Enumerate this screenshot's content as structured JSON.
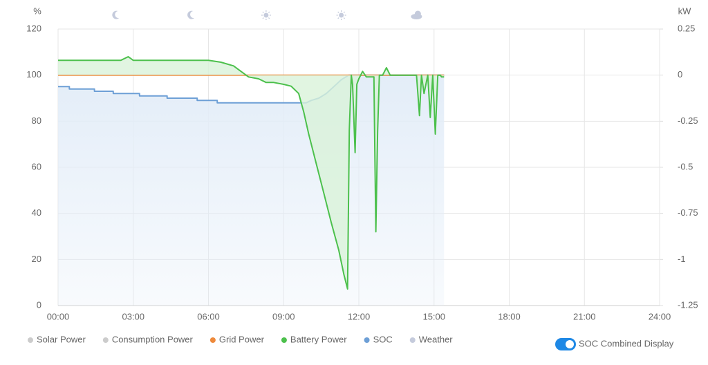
{
  "chart_data": {
    "type": "line",
    "ylabel": "%",
    "y2label": "kW",
    "xlim": [
      0,
      24
    ],
    "xticks": [
      {
        "value": 0,
        "label": "00:00"
      },
      {
        "value": 3,
        "label": "03:00"
      },
      {
        "value": 6,
        "label": "06:00"
      },
      {
        "value": 9,
        "label": "09:00"
      },
      {
        "value": 12,
        "label": "12:00"
      },
      {
        "value": 15,
        "label": "15:00"
      },
      {
        "value": 18,
        "label": "18:00"
      },
      {
        "value": 21,
        "label": "21:00"
      },
      {
        "value": 24,
        "label": "24:00"
      }
    ],
    "ylim": [
      0,
      120
    ],
    "yticks": [
      0,
      20,
      40,
      60,
      80,
      100,
      120
    ],
    "y2lim": [
      -1.25,
      0.25
    ],
    "y2ticks": [
      0.25,
      0,
      -0.25,
      -0.5,
      -0.75,
      -1,
      -1.25
    ],
    "grid": true,
    "series": [
      {
        "name": "Solar Power",
        "color": "#cccccc",
        "visible": false
      },
      {
        "name": "Consumption Power",
        "color": "#cccccc",
        "visible": false
      },
      {
        "name": "Grid Power",
        "color": "#ee8a3c",
        "visible": true,
        "axis": "y2",
        "x": [
          0,
          15.4
        ],
        "values": [
          0,
          0
        ]
      },
      {
        "name": "Battery Power",
        "color": "#4cc04c",
        "visible": true,
        "axis": "y2",
        "fill": "#d9f3d9",
        "x": [
          0,
          0.5,
          1,
          1.5,
          2,
          2.5,
          2.8,
          3,
          3.5,
          4,
          4.5,
          5,
          5.5,
          6,
          6.5,
          7,
          7.3,
          7.6,
          8,
          8.3,
          8.6,
          9,
          9.3,
          9.6,
          9.8,
          10,
          10.3,
          10.6,
          10.9,
          11.2,
          11.4,
          11.55,
          11.62,
          11.7,
          11.75,
          11.85,
          11.92,
          12.0,
          12.15,
          12.3,
          12.45,
          12.6,
          12.68,
          12.75,
          12.82,
          12.95,
          13.1,
          13.25,
          14.3,
          14.42,
          14.5,
          14.6,
          14.75,
          14.85,
          14.95,
          15.05,
          15.15,
          15.25,
          15.3,
          15.4
        ],
        "values": [
          0.08,
          0.08,
          0.08,
          0.08,
          0.08,
          0.08,
          0.1,
          0.08,
          0.08,
          0.08,
          0.08,
          0.08,
          0.08,
          0.08,
          0.07,
          0.05,
          0.02,
          -0.01,
          -0.02,
          -0.04,
          -0.04,
          -0.05,
          -0.06,
          -0.1,
          -0.2,
          -0.32,
          -0.48,
          -0.64,
          -0.8,
          -0.95,
          -1.08,
          -1.16,
          -0.3,
          0,
          -0.05,
          -0.42,
          -0.05,
          -0.02,
          0.02,
          -0.01,
          -0.01,
          -0.01,
          -0.85,
          -0.3,
          0,
          0,
          0.04,
          0,
          0,
          -0.22,
          0,
          -0.1,
          0,
          -0.23,
          0,
          -0.32,
          0,
          0,
          -0.01,
          -0.01
        ]
      },
      {
        "name": "SOC",
        "color": "#6d9fd6",
        "visible": true,
        "axis": "y",
        "fill": "#e3edf8",
        "x": [
          0,
          0.45,
          0.45,
          1.45,
          1.45,
          2.2,
          2.2,
          3.25,
          3.25,
          4.35,
          4.35,
          5.55,
          5.55,
          6.35,
          6.35,
          9.9,
          10.1,
          10.4,
          10.7,
          11.0,
          11.3,
          11.6,
          15.4
        ],
        "values": [
          95,
          95,
          94,
          94,
          93,
          93,
          92,
          92,
          91,
          91,
          90,
          90,
          89,
          89,
          88,
          88,
          89,
          90,
          92,
          95,
          98,
          100,
          100
        ]
      }
    ],
    "weather": {
      "name": "Weather",
      "color": "#c5cbdc",
      "icons": [
        {
          "x": 2.3,
          "icon": "moon"
        },
        {
          "x": 5.3,
          "icon": "moon"
        },
        {
          "x": 8.3,
          "icon": "sun"
        },
        {
          "x": 11.3,
          "icon": "sun"
        },
        {
          "x": 14.3,
          "icon": "cloud"
        }
      ]
    },
    "toggle": {
      "label": "SOC Combined Display",
      "on": true,
      "color": "#1e88e5"
    }
  }
}
